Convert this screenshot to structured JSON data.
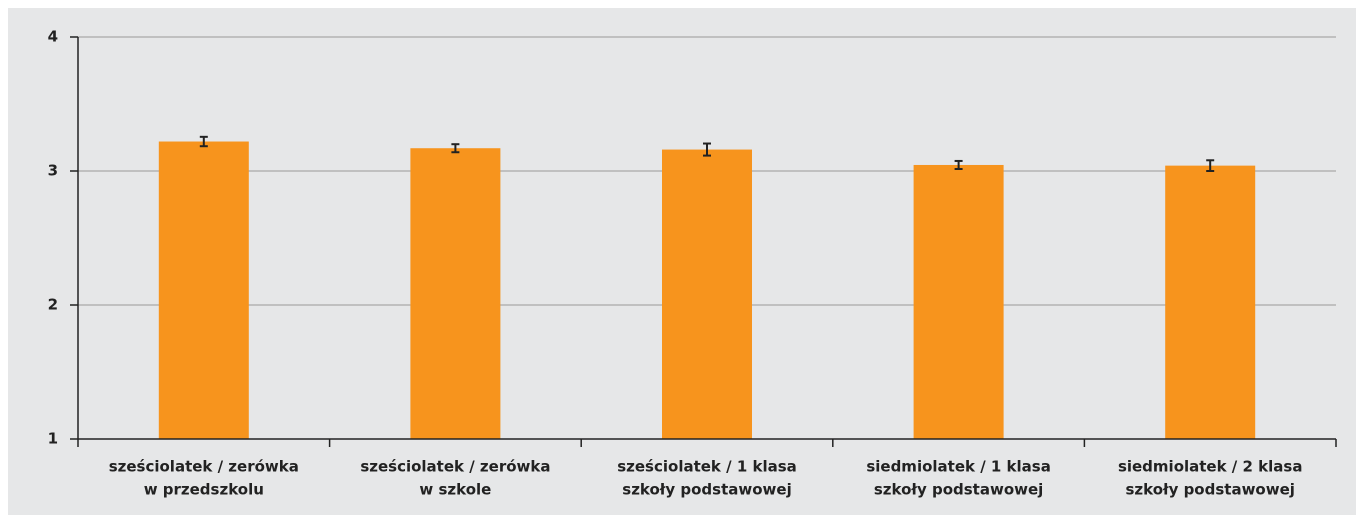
{
  "chart_data": {
    "type": "bar",
    "categories": [
      [
        "sześciolatek / zerówka",
        "w przedszkolu"
      ],
      [
        "sześciolatek / zerówka",
        "w szkole"
      ],
      [
        "sześciolatek / 1 klasa",
        "szkoły podstawowej"
      ],
      [
        "siedmiolatek / 1 klasa",
        "szkoły podstawowej"
      ],
      [
        "siedmiolatek / 2 klasa",
        "szkoły podstawowej"
      ]
    ],
    "values": [
      3.22,
      3.17,
      3.16,
      3.045,
      3.04
    ],
    "errors": [
      0.035,
      0.03,
      0.045,
      0.03,
      0.04
    ],
    "color": "#f7941d",
    "ylim": [
      1,
      4
    ],
    "yticks": [
      1,
      2,
      3,
      4
    ],
    "grid": true
  }
}
